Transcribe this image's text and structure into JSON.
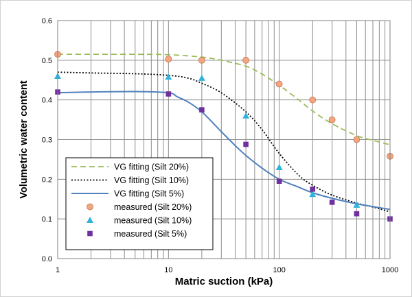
{
  "chart_data": {
    "type": "scatter",
    "title": "",
    "xlabel": "Matric suction (kPa)",
    "ylabel": "Volumetric water content",
    "xscale": "log",
    "xlim": [
      1,
      1000
    ],
    "ylim": [
      0,
      0.6
    ],
    "x_ticks": [
      1,
      10,
      100,
      1000
    ],
    "x_tick_labels": [
      "1",
      "10",
      "100",
      "1000"
    ],
    "y_ticks": [
      0,
      0.1,
      0.2,
      0.3,
      0.4,
      0.5,
      0.6
    ],
    "y_tick_labels": [
      "0.0",
      "0.1",
      "0.2",
      "0.3",
      "0.4",
      "0.5",
      "0.6"
    ],
    "grid": true,
    "legend_position": "bottom-left",
    "series": [
      {
        "name": "VG fitting (Silt 20%)",
        "kind": "line",
        "style": "dashed",
        "color": "#9BBB59",
        "x": [
          1,
          2,
          5,
          10,
          20,
          30,
          50,
          70,
          100,
          150,
          200,
          300,
          500,
          700,
          1000
        ],
        "y": [
          0.515,
          0.515,
          0.515,
          0.514,
          0.508,
          0.5,
          0.485,
          0.465,
          0.437,
          0.4,
          0.372,
          0.34,
          0.31,
          0.298,
          0.287
        ]
      },
      {
        "name": "VG fitting (Silt 10%)",
        "kind": "line",
        "style": "dotted",
        "color": "#000000",
        "x": [
          1,
          2,
          5,
          10,
          15,
          20,
          30,
          50,
          70,
          100,
          150,
          200,
          300,
          500,
          700,
          1000
        ],
        "y": [
          0.47,
          0.468,
          0.466,
          0.462,
          0.455,
          0.442,
          0.418,
          0.37,
          0.325,
          0.265,
          0.21,
          0.185,
          0.16,
          0.14,
          0.13,
          0.118
        ]
      },
      {
        "name": "VG fitting (Silt 5%)",
        "kind": "line",
        "style": "solid",
        "color": "#4F81BD",
        "x": [
          1,
          2,
          5,
          10,
          12,
          15,
          20,
          30,
          40,
          50,
          70,
          100,
          150,
          200,
          300,
          500,
          700,
          1000
        ],
        "y": [
          0.418,
          0.42,
          0.421,
          0.418,
          0.408,
          0.395,
          0.37,
          0.32,
          0.285,
          0.26,
          0.228,
          0.2,
          0.18,
          0.166,
          0.152,
          0.138,
          0.131,
          0.124
        ]
      },
      {
        "name": "measured (Silt 20%)",
        "kind": "points",
        "marker": "circle",
        "color": "#F4A582",
        "x": [
          1,
          10,
          20,
          50,
          100,
          200,
          300,
          500,
          1000
        ],
        "y": [
          0.515,
          0.503,
          0.5,
          0.5,
          0.44,
          0.4,
          0.35,
          0.3,
          0.258
        ]
      },
      {
        "name": "measured (Silt 10%)",
        "kind": "points",
        "marker": "triangle",
        "color": "#31B4DB",
        "x": [
          1,
          10,
          20,
          50,
          100,
          200,
          500
        ],
        "y": [
          0.46,
          0.458,
          0.455,
          0.36,
          0.23,
          0.162,
          0.135
        ]
      },
      {
        "name": "measured (Silt 5%)",
        "kind": "points",
        "marker": "square",
        "color": "#7030A0",
        "x": [
          1,
          10,
          20,
          50,
          100,
          200,
          300,
          500,
          1000
        ],
        "y": [
          0.42,
          0.415,
          0.375,
          0.288,
          0.195,
          0.175,
          0.142,
          0.113,
          0.1
        ]
      }
    ]
  }
}
